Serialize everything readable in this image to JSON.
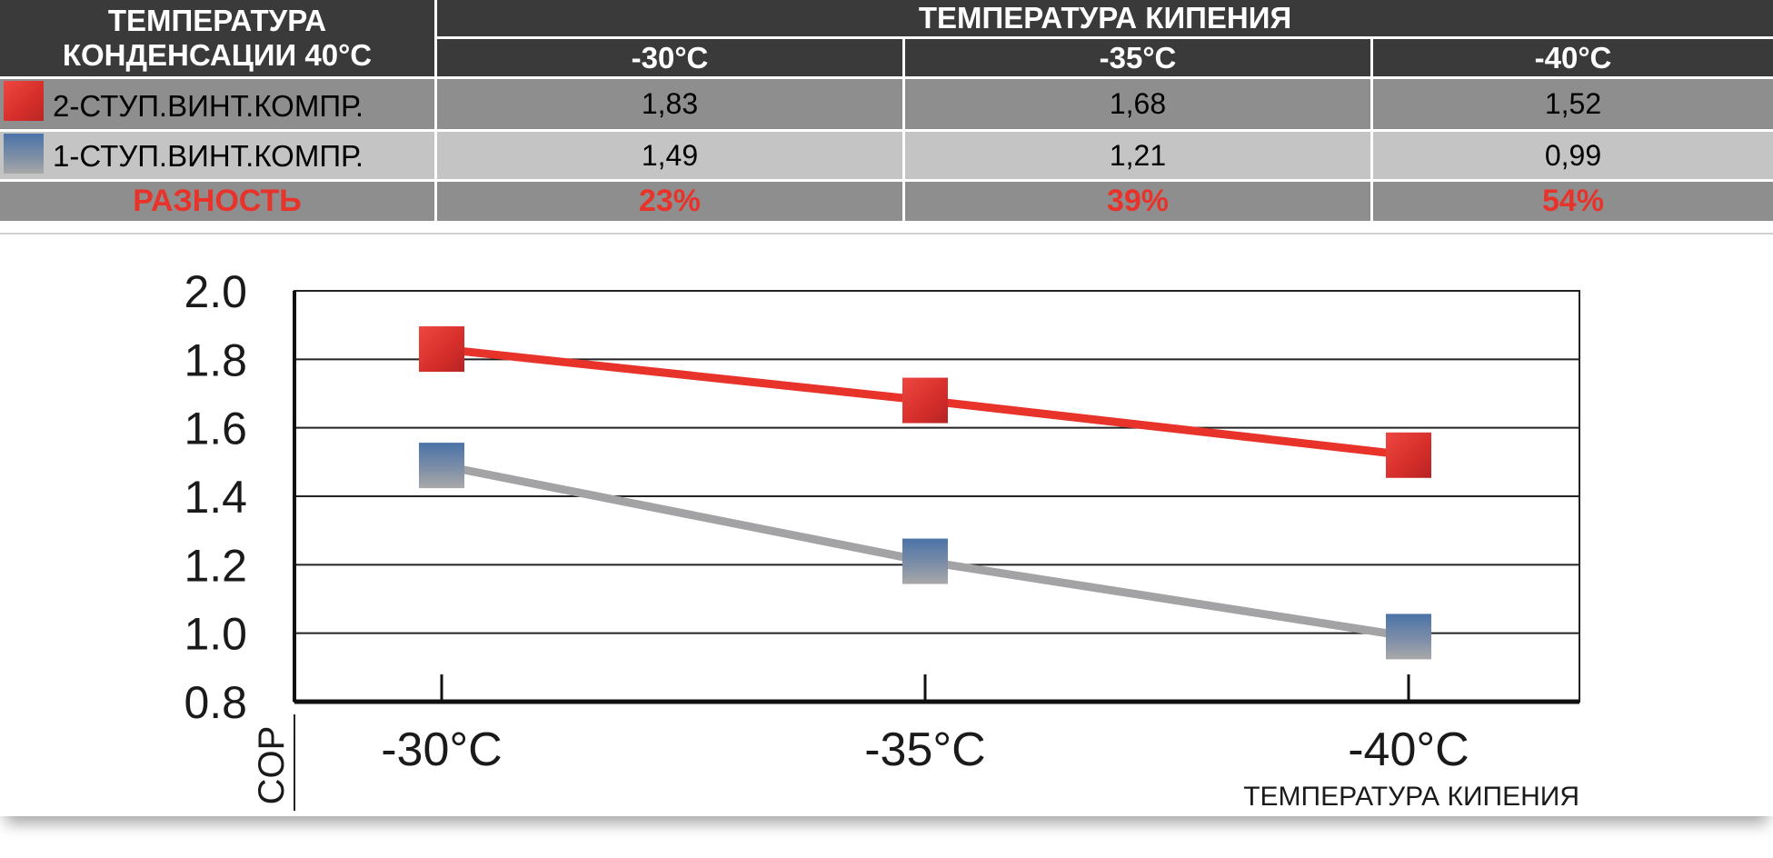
{
  "table": {
    "corner_header_line1": "ТЕМПЕРАТУРА",
    "corner_header_line2": "КОНДЕНСАЦИИ 40°C",
    "group_header": "ТЕМПЕРАТУРА КИПЕНИЯ",
    "columns": [
      "-30°C",
      "-35°C",
      "-40°C"
    ],
    "rows": [
      {
        "label": "2-СТУП.ВИНТ.КОМПР.",
        "values": [
          "1,83",
          "1,68",
          "1,52"
        ]
      },
      {
        "label": "1-СТУП.ВИНТ.КОМПР.",
        "values": [
          "1,49",
          "1,21",
          "0,99"
        ]
      }
    ],
    "diff_label": "РАЗНОСТЬ",
    "diff_values": [
      "23%",
      "39%",
      "54%"
    ]
  },
  "colors": {
    "header_bg": "#3a3a3a",
    "row_dark": "#8e8e8e",
    "row_light": "#c4c4c4",
    "series_red": "#e8332b",
    "series_gray": "#a3a3a5",
    "marker_blue": "#4a73a8",
    "diff_text": "#e8332b"
  },
  "chart_data": {
    "type": "line",
    "categories": [
      "-30°C",
      "-35°C",
      "-40°C"
    ],
    "series": [
      {
        "name": "2-СТУП.ВИНТ.КОМПР.",
        "values": [
          1.83,
          1.68,
          1.52
        ],
        "color": "#e8332b",
        "marker": "red-square"
      },
      {
        "name": "1-СТУП.ВИНТ.КОМПР.",
        "values": [
          1.49,
          1.21,
          0.99
        ],
        "color": "#a3a3a5",
        "marker": "blue-square"
      }
    ],
    "ylim": [
      0.8,
      2.0
    ],
    "yticks": [
      "0.8",
      "1.0",
      "1.2",
      "1.4",
      "1.6",
      "1.8",
      "2.0"
    ],
    "ylabel": "COP",
    "xlabel": "ТЕМПЕРАТУРА КИПЕНИЯ",
    "grid": true
  }
}
